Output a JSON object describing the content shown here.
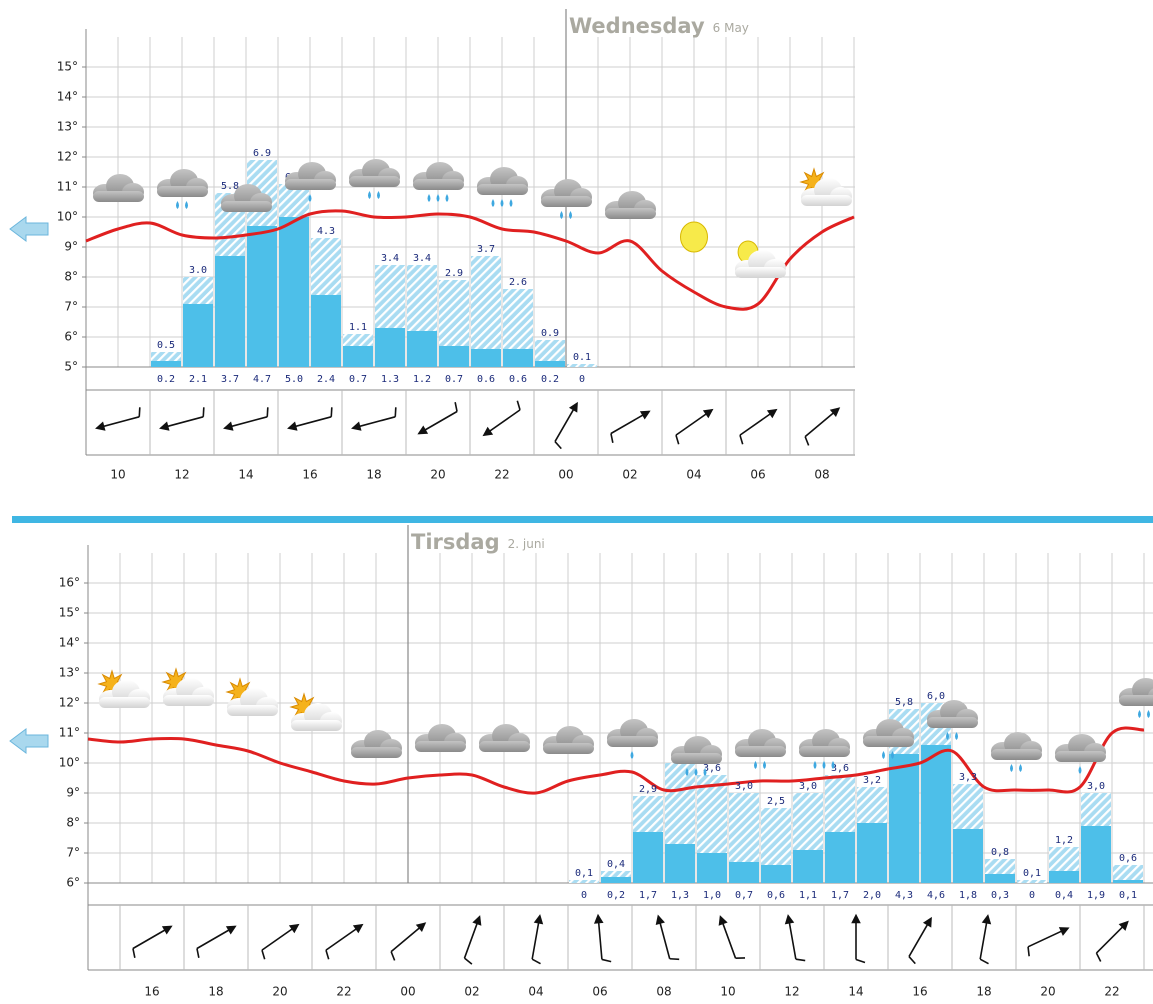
{
  "chart_data": [
    {
      "type": "combo",
      "title": "Wednesday",
      "subtitle": "6 May",
      "categories": [
        null,
        "10",
        null,
        "12",
        null,
        "14",
        null,
        "16",
        null,
        "18",
        null,
        "20",
        null,
        "22",
        null,
        "00",
        null,
        "02",
        null,
        "04",
        null,
        "06",
        null,
        "08",
        null
      ],
      "ylim": [
        5,
        16
      ],
      "yticks": [
        {
          "value": 5,
          "label": "5°"
        },
        {
          "value": 6,
          "label": "6°"
        },
        {
          "value": 7,
          "label": "7°"
        },
        {
          "value": 8,
          "label": "8°"
        },
        {
          "value": 9,
          "label": "9°"
        },
        {
          "value": 10,
          "label": "10°"
        },
        {
          "value": 11,
          "label": "11°"
        },
        {
          "value": 12,
          "label": "12°"
        },
        {
          "value": 13,
          "label": "13°"
        },
        {
          "value": 14,
          "label": "14°"
        },
        {
          "value": 15,
          "label": "15°"
        }
      ],
      "grid": true,
      "temperature": {
        "color": "#e02020",
        "values": [
          9.2,
          9.6,
          9.8,
          9.4,
          9.3,
          9.4,
          9.6,
          10.1,
          10.2,
          10.0,
          10.0,
          10.1,
          10.0,
          9.6,
          9.5,
          9.2,
          8.8,
          9.2,
          8.2,
          7.5,
          7.0,
          7.1,
          8.6,
          9.5,
          10.0
        ]
      },
      "precipitation_max": {
        "color": "#a9dcf2",
        "values": [
          null,
          null,
          0.5,
          3.0,
          5.8,
          6.9,
          6.1,
          4.3,
          1.1,
          3.4,
          3.4,
          2.9,
          3.7,
          2.6,
          0.9,
          0.1,
          null,
          null,
          null,
          null,
          null,
          null,
          null,
          null,
          null
        ],
        "value_labels": [
          null,
          null,
          "0.5",
          "3.0",
          "5.8",
          "6.9",
          "6.1",
          "4.3",
          "1.1",
          "3.4",
          "3.4",
          "2.9",
          "3.7",
          "2.6",
          "0.9",
          "0.1",
          null,
          null,
          null,
          null,
          null,
          null,
          null,
          null,
          null
        ]
      },
      "precipitation": {
        "color": "#4dbfe9",
        "values": [
          null,
          null,
          0.2,
          2.1,
          3.7,
          4.7,
          5.0,
          2.4,
          0.7,
          1.3,
          1.2,
          0.7,
          0.6,
          0.6,
          0.2,
          0,
          null,
          null,
          null,
          null,
          null,
          null,
          null,
          null,
          null
        ],
        "value_labels": [
          null,
          null,
          "0.2",
          "2.1",
          "3.7",
          "4.7",
          "5.0",
          "2.4",
          "0.7",
          "1.3",
          "1.2",
          "0.7",
          "0.6",
          "0.6",
          "0.2",
          "0",
          null,
          null,
          null,
          null,
          null,
          null,
          null,
          null,
          null
        ]
      }
    },
    {
      "type": "combo",
      "title": "Tirsdag",
      "subtitle": "2. juni",
      "categories": [
        null,
        null,
        "16",
        null,
        "18",
        null,
        "20",
        null,
        "22",
        null,
        "00",
        null,
        "02",
        null,
        "04",
        null,
        "06",
        null,
        "08",
        null,
        "10",
        null,
        "12",
        null,
        "14",
        null,
        "16",
        null,
        "18",
        null,
        "20",
        null,
        "22",
        null
      ],
      "ylim": [
        6,
        17
      ],
      "yticks": [
        {
          "value": 6,
          "label": "6°"
        },
        {
          "value": 7,
          "label": "7°"
        },
        {
          "value": 8,
          "label": "8°"
        },
        {
          "value": 9,
          "label": "9°"
        },
        {
          "value": 10,
          "label": "10°"
        },
        {
          "value": 11,
          "label": "11°"
        },
        {
          "value": 12,
          "label": "12°"
        },
        {
          "value": 13,
          "label": "13°"
        },
        {
          "value": 14,
          "label": "14°"
        },
        {
          "value": 15,
          "label": "15°"
        },
        {
          "value": 16,
          "label": "16°"
        }
      ],
      "grid": true,
      "temperature": {
        "color": "#e02020",
        "values": [
          10.8,
          10.7,
          10.8,
          10.8,
          10.6,
          10.4,
          10.0,
          9.7,
          9.4,
          9.3,
          9.5,
          9.6,
          9.6,
          9.2,
          9.0,
          9.4,
          9.6,
          9.7,
          9.1,
          9.2,
          9.3,
          9.4,
          9.4,
          9.5,
          9.6,
          9.8,
          10.0,
          10.4,
          9.2,
          9.1,
          9.1,
          9.2,
          11.0,
          11.1
        ]
      },
      "precipitation_max": {
        "color": "#a9dcf2",
        "values": [
          null,
          null,
          null,
          null,
          null,
          null,
          null,
          null,
          null,
          null,
          null,
          null,
          null,
          null,
          null,
          0.1,
          0.4,
          2.9,
          4.0,
          3.6,
          3.0,
          2.5,
          3.0,
          3.6,
          3.2,
          5.8,
          6.0,
          3.3,
          0.8,
          0.1,
          1.2,
          3.0,
          0.6,
          null
        ],
        "value_labels": [
          null,
          null,
          null,
          null,
          null,
          null,
          null,
          null,
          null,
          null,
          null,
          null,
          null,
          null,
          null,
          "0,1",
          "0,4",
          "2,9",
          "4,0",
          "3,6",
          "3,0",
          "2,5",
          "3,0",
          "3,6",
          "3,2",
          "5,8",
          "6,0",
          "3,3",
          "0,8",
          "0,1",
          "1,2",
          "3,0",
          "0,6",
          null
        ]
      },
      "precipitation": {
        "color": "#4dbfe9",
        "values": [
          null,
          null,
          null,
          null,
          null,
          null,
          null,
          null,
          null,
          null,
          null,
          null,
          null,
          null,
          null,
          0,
          0.2,
          1.7,
          1.3,
          1.0,
          0.7,
          0.6,
          1.1,
          1.7,
          2.0,
          4.3,
          4.6,
          1.8,
          0.3,
          0,
          0.4,
          1.9,
          0.1,
          null
        ],
        "value_labels": [
          null,
          null,
          null,
          null,
          null,
          null,
          null,
          null,
          null,
          null,
          null,
          null,
          null,
          null,
          null,
          "0",
          "0,2",
          "1,7",
          "1,3",
          "1,0",
          "0,7",
          "0,6",
          "1,1",
          "1,7",
          "2,0",
          "4,3",
          "4,6",
          "1,8",
          "0,3",
          "0",
          "0,4",
          "1,9",
          "0,1",
          null
        ]
      }
    }
  ]
}
